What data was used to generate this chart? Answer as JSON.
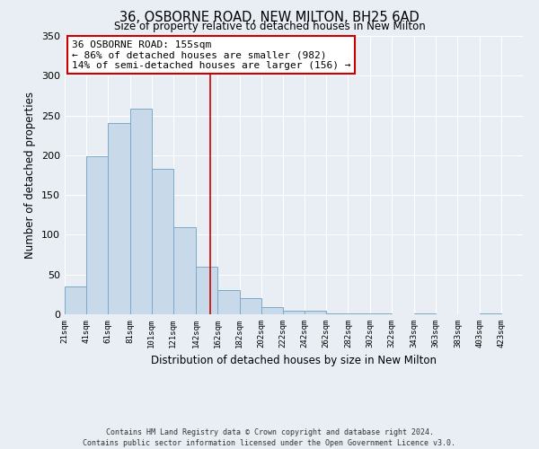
{
  "title": "36, OSBORNE ROAD, NEW MILTON, BH25 6AD",
  "subtitle": "Size of property relative to detached houses in New Milton",
  "xlabel": "Distribution of detached houses by size in New Milton",
  "ylabel": "Number of detached properties",
  "bar_color": "#c8daea",
  "bar_edge_color": "#7aaac8",
  "bar_left_edges": [
    21,
    41,
    61,
    81,
    101,
    121,
    142,
    162,
    182,
    202,
    222,
    242,
    262,
    282,
    302,
    322,
    343,
    363,
    383,
    403
  ],
  "bar_widths": [
    20,
    20,
    20,
    20,
    20,
    21,
    20,
    20,
    20,
    20,
    20,
    20,
    20,
    20,
    20,
    21,
    20,
    20,
    20,
    20
  ],
  "bar_heights": [
    35,
    199,
    240,
    258,
    183,
    109,
    60,
    30,
    20,
    9,
    5,
    5,
    1,
    1,
    1,
    0,
    1,
    0,
    0,
    1
  ],
  "tick_labels": [
    "21sqm",
    "41sqm",
    "61sqm",
    "81sqm",
    "101sqm",
    "121sqm",
    "142sqm",
    "162sqm",
    "182sqm",
    "202sqm",
    "222sqm",
    "242sqm",
    "262sqm",
    "282sqm",
    "302sqm",
    "322sqm",
    "343sqm",
    "363sqm",
    "383sqm",
    "403sqm",
    "423sqm"
  ],
  "tick_positions": [
    21,
    41,
    61,
    81,
    101,
    121,
    142,
    162,
    182,
    202,
    222,
    242,
    262,
    282,
    302,
    322,
    343,
    363,
    383,
    403,
    423
  ],
  "ylim": [
    0,
    350
  ],
  "xlim": [
    21,
    443
  ],
  "vline_x": 155,
  "vline_color": "#cc0000",
  "annotation_title": "36 OSBORNE ROAD: 155sqm",
  "annotation_line1": "← 86% of detached houses are smaller (982)",
  "annotation_line2": "14% of semi-detached houses are larger (156) →",
  "annotation_box_color": "#ffffff",
  "annotation_box_edge": "#cc0000",
  "yticks": [
    0,
    50,
    100,
    150,
    200,
    250,
    300,
    350
  ],
  "footer1": "Contains HM Land Registry data © Crown copyright and database right 2024.",
  "footer2": "Contains public sector information licensed under the Open Government Licence v3.0.",
  "bg_color": "#e8eef4",
  "plot_bg_color": "#e8eef4",
  "grid_color": "#ffffff"
}
